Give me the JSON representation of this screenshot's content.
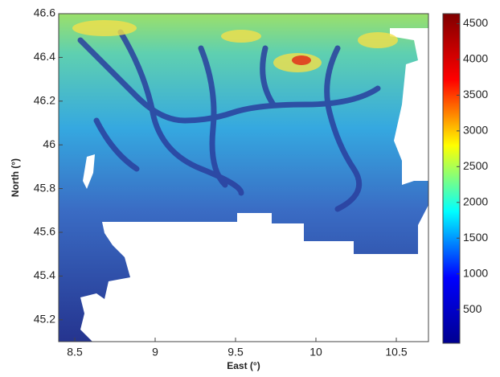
{
  "chart_data": {
    "type": "map",
    "xlabel": "East (°)",
    "ylabel": "North (°)",
    "xlim": [
      8.4,
      10.7
    ],
    "xticks": [
      8.5,
      9,
      9.5,
      10,
      10.5
    ],
    "ylim": [
      45.1,
      46.6
    ],
    "yticks": [
      45.2,
      45.4,
      45.6,
      45.8,
      46,
      46.2,
      46.4,
      46.6
    ],
    "colormap": "jet",
    "clim": [
      30,
      4640
    ],
    "cticks": [
      500,
      1000,
      1500,
      2000,
      2500,
      3000,
      3500,
      4000,
      4500
    ]
  }
}
